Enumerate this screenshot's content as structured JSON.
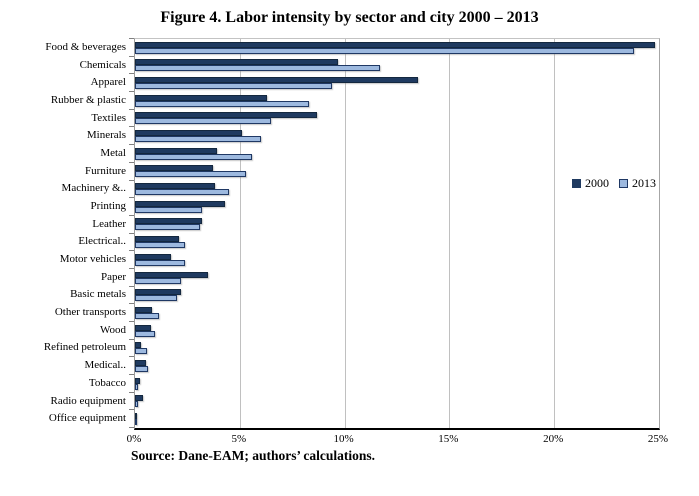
{
  "figure": {
    "title": "Figure 4. Labor intensity by sector and city 2000 – 2013",
    "source": "Source: Dane-EAM; authors’ calculations."
  },
  "chart_data": {
    "type": "bar",
    "orientation": "horizontal",
    "title": "Figure 4. Labor intensity by sector and city 2000 – 2013",
    "categories": [
      "Food & beverages",
      "Chemicals",
      "Apparel",
      "Rubber & plastic",
      "Textiles",
      "Minerals",
      "Metal",
      "Furniture",
      "Machinery &..",
      "Printing",
      "Leather",
      "Electrical..",
      "Motor vehicles",
      "Paper",
      "Basic metals",
      "Other transports",
      "Wood",
      "Refined petroleum",
      "Medical..",
      "Tobacco",
      "Radio equipment",
      "Office equipment"
    ],
    "series": [
      {
        "name": "2000",
        "color": "#1f3a60",
        "border_color": "#14283f",
        "values": [
          24.8,
          9.7,
          13.5,
          6.3,
          8.7,
          5.1,
          3.9,
          3.7,
          3.8,
          4.3,
          3.2,
          2.1,
          1.7,
          3.5,
          2.2,
          0.8,
          0.75,
          0.3,
          0.5,
          0.25,
          0.4,
          0.08
        ]
      },
      {
        "name": "2013",
        "color": "#9db9df",
        "border_color": "#1f3864",
        "values": [
          23.8,
          11.7,
          9.4,
          8.3,
          6.5,
          6.0,
          5.6,
          5.3,
          4.5,
          3.2,
          3.1,
          2.4,
          2.4,
          2.2,
          2.0,
          1.15,
          0.95,
          0.55,
          0.6,
          0.15,
          0.15,
          0.04
        ]
      }
    ],
    "xlim": [
      0,
      25
    ],
    "x_tick_labels": [
      "0%",
      "5%",
      "10%",
      "15%",
      "20%",
      "25%"
    ],
    "xlabel": "",
    "ylabel": "",
    "grid": true,
    "gridline_color": "#c0c0c0",
    "legend_position": "middle-right",
    "legend_entries": [
      "2000",
      "2013"
    ],
    "source": "Source: Dane-EAM; authors’ calculations."
  }
}
